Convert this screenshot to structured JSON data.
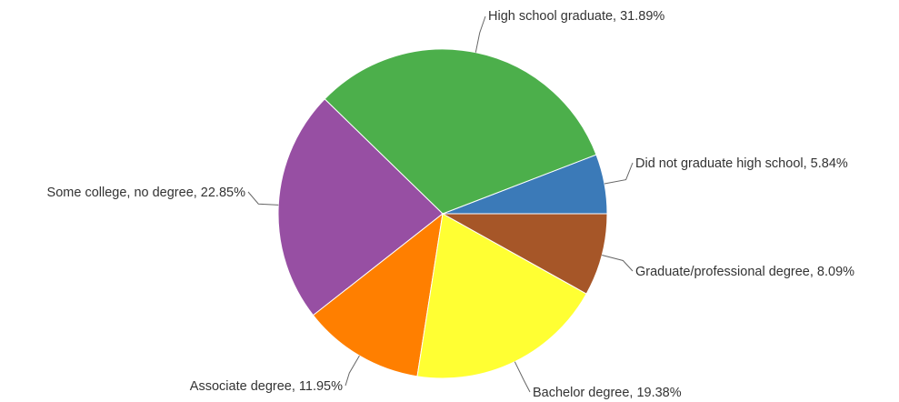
{
  "chart_data": {
    "type": "pie",
    "title": "",
    "slices": [
      {
        "name": "Did not graduate high school",
        "value": 5.84,
        "label": "Did not graduate high school, 5.84%",
        "color": "#3b7ab8"
      },
      {
        "name": "High school graduate",
        "value": 31.89,
        "label": "High school graduate, 31.89%",
        "color": "#4caf4b"
      },
      {
        "name": "Some college, no degree",
        "value": 22.85,
        "label": "Some college, no degree, 22.85%",
        "color": "#974fa3"
      },
      {
        "name": "Associate degree",
        "value": 11.95,
        "label": "Associate degree, 11.95%",
        "color": "#ff7f00"
      },
      {
        "name": "Bachelor degree",
        "value": 19.38,
        "label": "Bachelor degree, 19.38%",
        "color": "#ffff33"
      },
      {
        "name": "Graduate/professional degree",
        "value": 8.09,
        "label": "Graduate/professional degree, 8.09%",
        "color": "#a65628"
      }
    ],
    "legend": "none"
  }
}
